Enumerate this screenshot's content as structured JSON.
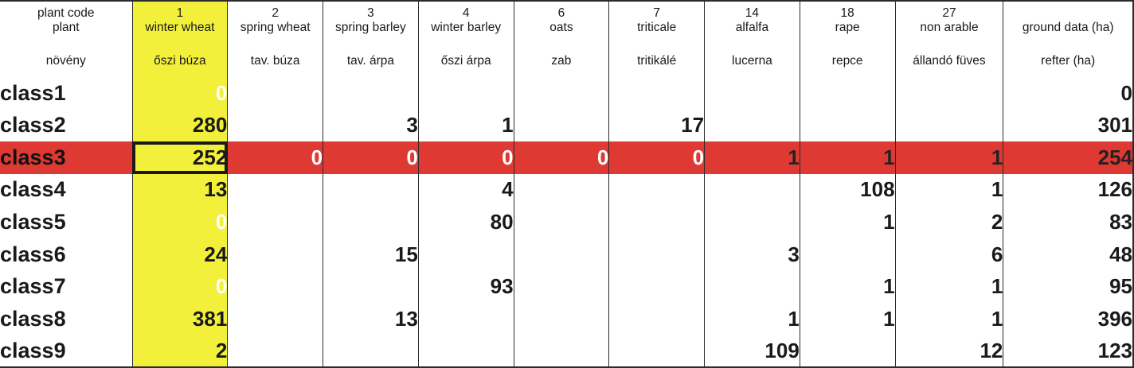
{
  "header": {
    "row_codes": {
      "label": "plant code",
      "values": [
        "1",
        "2",
        "3",
        "4",
        "6",
        "7",
        "14",
        "18",
        "27",
        ""
      ]
    },
    "row_plant": {
      "label": "plant",
      "values": [
        "winter wheat",
        "spring wheat",
        "spring barley",
        "winter barley",
        "oats",
        "triticale",
        "alfalfa",
        "rape",
        "non arable",
        "ground data (ha)"
      ]
    },
    "row_hungarian": {
      "label": "növény",
      "values": [
        "őszi búza",
        "tav. búza",
        "tav. árpa",
        "őszi árpa",
        "zab",
        "tritikálé",
        "lucerna",
        "repce",
        "állandó füves",
        "refter (ha)"
      ]
    }
  },
  "rows": [
    {
      "label": "class1",
      "cells": [
        "0",
        "",
        "",
        "",
        "",
        "",
        "",
        "",
        "",
        "0"
      ]
    },
    {
      "label": "class2",
      "cells": [
        "280",
        "",
        "3",
        "1",
        "",
        "17",
        "",
        "",
        "",
        "301"
      ]
    },
    {
      "label": "class3",
      "cells": [
        "252",
        "0",
        "0",
        "0",
        "0",
        "0",
        "1",
        "1",
        "1",
        "254"
      ]
    },
    {
      "label": "class4",
      "cells": [
        "13",
        "",
        "",
        "4",
        "",
        "",
        "",
        "108",
        "1",
        "126"
      ]
    },
    {
      "label": "class5",
      "cells": [
        "0",
        "",
        "",
        "80",
        "",
        "",
        "",
        "1",
        "2",
        "83"
      ]
    },
    {
      "label": "class6",
      "cells": [
        "24",
        "",
        "15",
        "",
        "",
        "",
        "3",
        "",
        "6",
        "48"
      ]
    },
    {
      "label": "class7",
      "cells": [
        "0",
        "",
        "",
        "93",
        "",
        "",
        "",
        "1",
        "1",
        "95"
      ]
    },
    {
      "label": "class8",
      "cells": [
        "381",
        "",
        "13",
        "",
        "",
        "",
        "1",
        "1",
        "1",
        "396"
      ]
    },
    {
      "label": "class9",
      "cells": [
        "2",
        "",
        "",
        "",
        "",
        "",
        "109",
        "",
        "12",
        "123"
      ]
    }
  ],
  "highlighted_row": "class3",
  "selected_cell": "class3 / winter wheat",
  "colors": {
    "winter_wheat_column": "#f2f03a",
    "highlight_row": "#de3a33",
    "grid": "#2b2b2b"
  }
}
